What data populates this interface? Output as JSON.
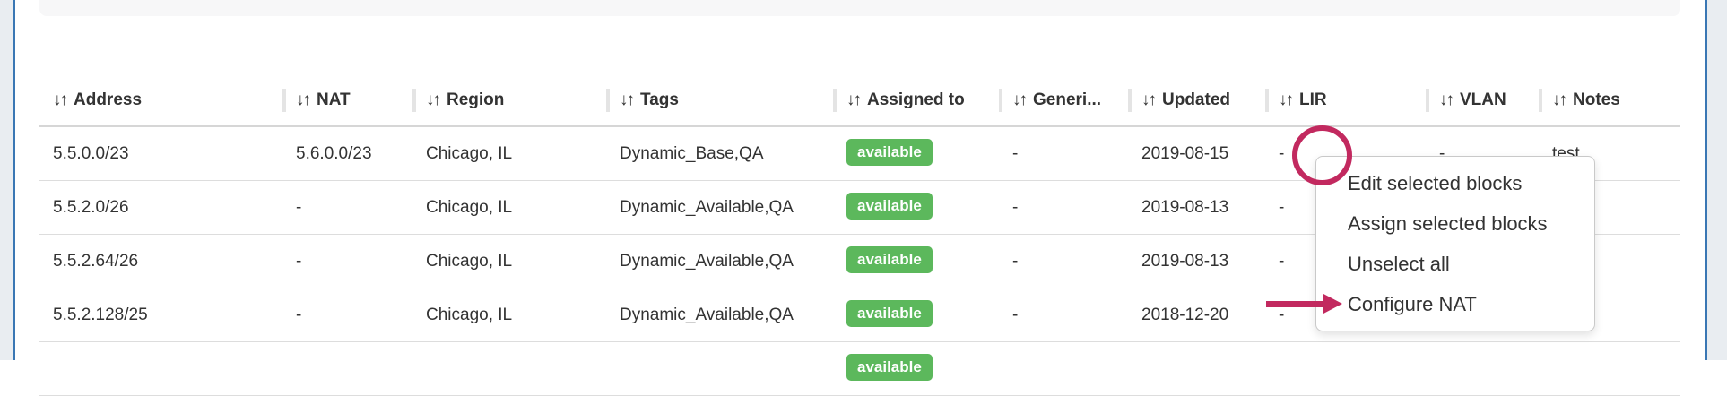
{
  "colors": {
    "badge_green": "#5cb85c",
    "annotation_pink": "#c2295f",
    "panel_border_blue": "#3a77b4"
  },
  "icons": {
    "sort": "↓↑"
  },
  "table": {
    "columns": [
      {
        "key": "address",
        "label": "Address"
      },
      {
        "key": "nat",
        "label": "NAT"
      },
      {
        "key": "region",
        "label": "Region"
      },
      {
        "key": "tags",
        "label": "Tags"
      },
      {
        "key": "assigned",
        "label": "Assigned to"
      },
      {
        "key": "generic",
        "label": "Generi..."
      },
      {
        "key": "updated",
        "label": "Updated"
      },
      {
        "key": "lir",
        "label": "LIR"
      },
      {
        "key": "vlan",
        "label": "VLAN"
      },
      {
        "key": "notes",
        "label": "Notes"
      }
    ],
    "rows": [
      {
        "address": "5.5.0.0/23",
        "nat": "5.6.0.0/23",
        "region": "Chicago, IL",
        "tags": "Dynamic_Base,QA",
        "assigned": "available",
        "generic": "-",
        "updated": "2019-08-15",
        "lir": "-",
        "vlan": "-",
        "notes": "test"
      },
      {
        "address": "5.5.2.0/26",
        "nat": "-",
        "region": "Chicago, IL",
        "tags": "Dynamic_Available,QA",
        "assigned": "available",
        "generic": "-",
        "updated": "2019-08-13",
        "lir": "-",
        "vlan": "",
        "notes": ""
      },
      {
        "address": "5.5.2.64/26",
        "nat": "-",
        "region": "Chicago, IL",
        "tags": "Dynamic_Available,QA",
        "assigned": "available",
        "generic": "-",
        "updated": "2019-08-13",
        "lir": "-",
        "vlan": "",
        "notes": ""
      },
      {
        "address": "5.5.2.128/25",
        "nat": "-",
        "region": "Chicago, IL",
        "tags": "Dynamic_Available,QA",
        "assigned": "available",
        "generic": "-",
        "updated": "2018-12-20",
        "lir": "-",
        "vlan": "",
        "notes": ""
      },
      {
        "address": "",
        "nat": "",
        "region": "",
        "tags": "",
        "assigned": "available",
        "generic": "",
        "updated": "",
        "lir": "",
        "vlan": "",
        "notes": ""
      }
    ]
  },
  "menu": {
    "items": [
      "Edit selected blocks",
      "Assign selected blocks",
      "Unselect all",
      "Configure NAT"
    ]
  }
}
